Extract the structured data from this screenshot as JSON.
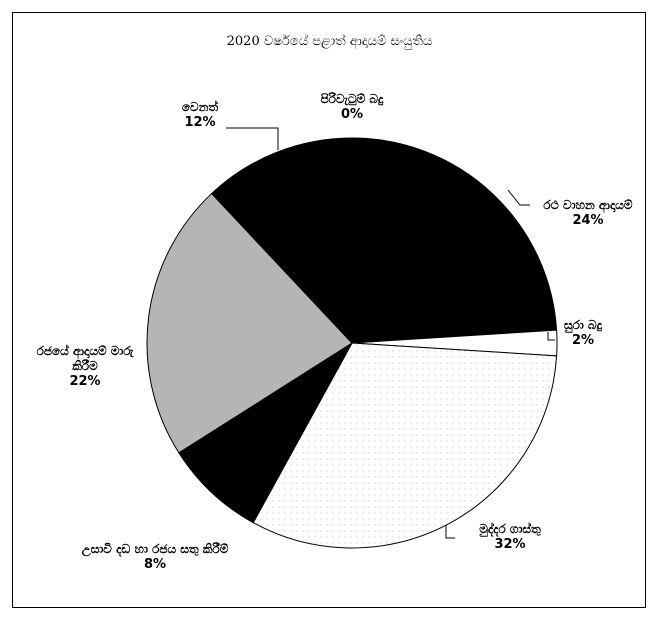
{
  "chart_data": {
    "type": "pie",
    "title": "2020 වර්ෂයේ පළාත් ආදායම් සංයුතිය",
    "categories": [
      "පිරිවැටුම් බදු",
      "රථ වාහන ආදායම්",
      "සුරා බදු",
      "මුද්දර ගාස්තු",
      "උසාවි දඩ හා රජය සතු කිරීම්",
      "රජයේ ආදායම් මාරු කිරීම",
      "වෙනත්"
    ],
    "values": [
      0,
      24,
      2,
      32,
      8,
      22,
      12
    ],
    "value_labels": [
      "0%",
      "24%",
      "2%",
      "32%",
      "8%",
      "22%",
      "12%"
    ],
    "colors": [
      "#000000",
      "#000000",
      "#ffffff",
      "#ffffff",
      "#000000",
      "#b5b5b5",
      "#000000"
    ]
  }
}
